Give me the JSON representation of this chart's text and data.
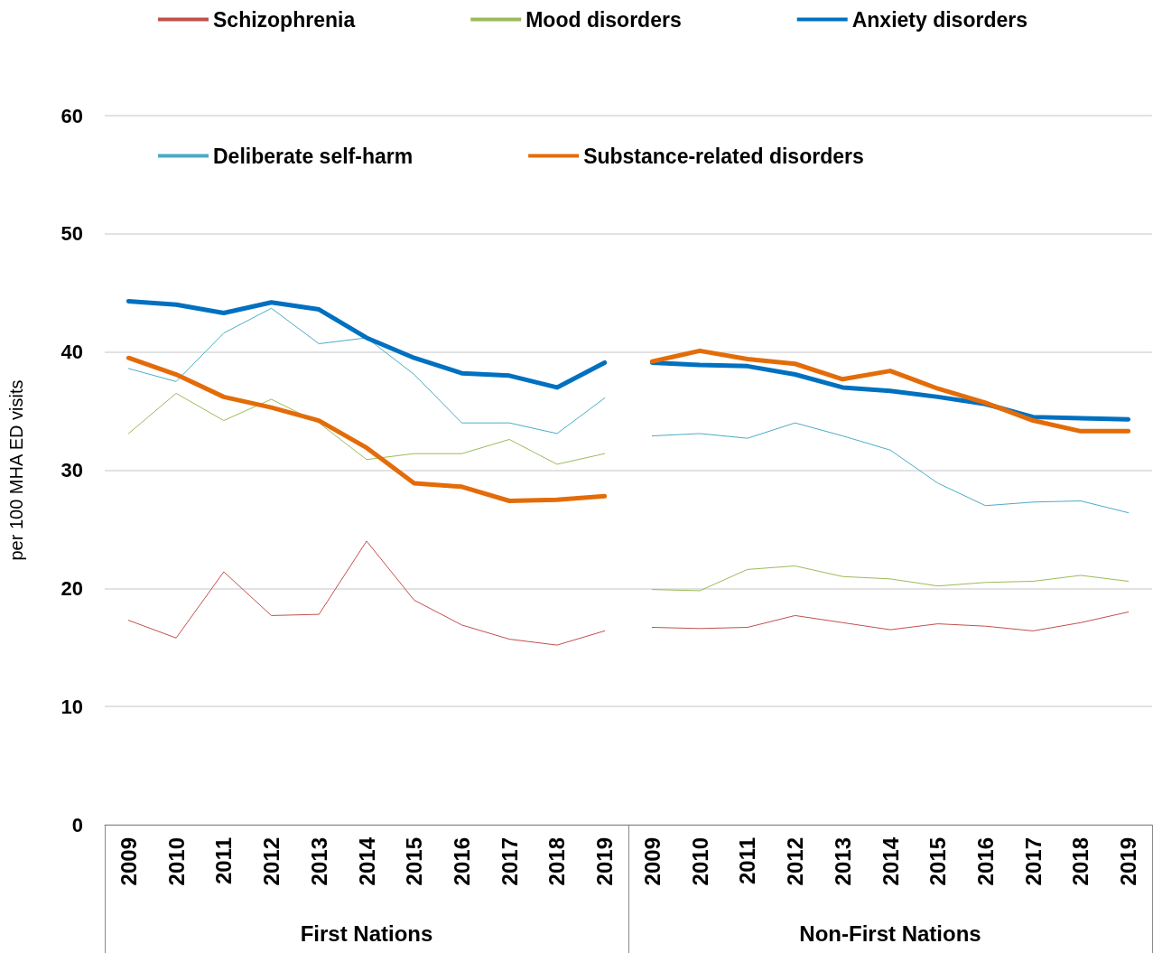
{
  "chart_data": {
    "type": "line",
    "ylabel": "per 100 MHA ED visits",
    "categories": [
      "2009",
      "2010",
      "2011",
      "2012",
      "2013",
      "2014",
      "2015",
      "2016",
      "2017",
      "2018",
      "2019",
      "2009",
      "2010",
      "2011",
      "2012",
      "2013",
      "2014",
      "2015",
      "2016",
      "2017",
      "2018",
      "2019"
    ],
    "annotations": [
      "First Nations",
      "Non-First Nations"
    ],
    "series": [
      {
        "name": "Schizophrenia",
        "color": "#c0504d",
        "values": [
          17.3,
          15.8,
          21.4,
          17.7,
          17.8,
          24.0,
          19.0,
          16.9,
          15.7,
          15.2,
          16.4,
          16.7,
          16.6,
          16.7,
          17.7,
          17.1,
          16.5,
          17.0,
          16.8,
          16.4,
          17.1,
          18.0
        ]
      },
      {
        "name": "Mood disorders",
        "color": "#9bbb59",
        "values": [
          33.1,
          36.5,
          34.2,
          36.0,
          34.0,
          30.9,
          31.4,
          31.4,
          32.6,
          30.5,
          31.4,
          19.9,
          19.8,
          21.6,
          21.9,
          21.0,
          20.8,
          20.2,
          20.5,
          20.6,
          21.1,
          20.6
        ]
      },
      {
        "name": "Anxiety disorders",
        "color": "#0070c0",
        "values": [
          44.3,
          44.0,
          43.3,
          44.2,
          43.6,
          41.2,
          39.5,
          38.2,
          38.0,
          37.0,
          39.1,
          39.1,
          38.9,
          38.8,
          38.1,
          37.0,
          36.7,
          36.2,
          35.6,
          34.5,
          34.4,
          34.3
        ]
      },
      {
        "name": "Deliberate self-harm",
        "color": "#4bacc6",
        "values": [
          38.6,
          37.5,
          41.6,
          43.7,
          40.7,
          41.2,
          38.1,
          34.0,
          34.0,
          33.1,
          36.1,
          32.9,
          33.1,
          32.7,
          34.0,
          32.9,
          31.7,
          28.9,
          27.0,
          27.3,
          27.4,
          26.4
        ]
      },
      {
        "name": "Substance-related disorders",
        "color": "#e36c09",
        "values": [
          39.5,
          38.1,
          36.2,
          35.3,
          34.2,
          31.9,
          28.9,
          28.6,
          27.4,
          27.5,
          27.8,
          39.2,
          40.1,
          39.4,
          39.0,
          37.7,
          38.4,
          36.9,
          35.7,
          34.2,
          33.3,
          33.3
        ]
      }
    ],
    "ylim": [
      0,
      60
    ],
    "yticks": [
      0,
      10,
      20,
      30,
      40,
      50,
      60
    ],
    "grid": "y",
    "legend": "top",
    "marker": "none",
    "line_style": "solid"
  }
}
